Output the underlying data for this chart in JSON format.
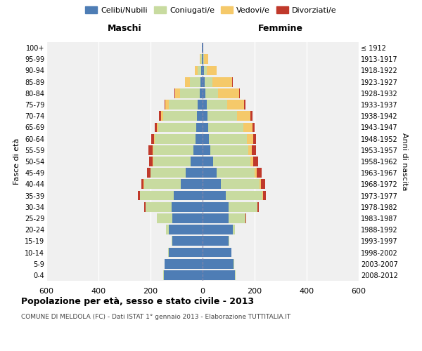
{
  "age_groups": [
    "0-4",
    "5-9",
    "10-14",
    "15-19",
    "20-24",
    "25-29",
    "30-34",
    "35-39",
    "40-44",
    "45-49",
    "50-54",
    "55-59",
    "60-64",
    "65-69",
    "70-74",
    "75-79",
    "80-84",
    "85-89",
    "90-94",
    "95-99",
    "100+"
  ],
  "birth_years": [
    "2008-2012",
    "2003-2007",
    "1998-2002",
    "1993-1997",
    "1988-1992",
    "1983-1987",
    "1978-1982",
    "1973-1977",
    "1968-1972",
    "1963-1967",
    "1958-1962",
    "1953-1957",
    "1948-1952",
    "1943-1947",
    "1938-1942",
    "1933-1937",
    "1928-1932",
    "1923-1927",
    "1918-1922",
    "1913-1917",
    "≤ 1912"
  ],
  "males": {
    "celibi": [
      150,
      145,
      130,
      115,
      130,
      115,
      120,
      110,
      85,
      65,
      45,
      35,
      28,
      25,
      22,
      20,
      12,
      8,
      5,
      3,
      2
    ],
    "coniugati": [
      2,
      2,
      2,
      3,
      10,
      60,
      100,
      130,
      140,
      135,
      145,
      155,
      155,
      145,
      130,
      110,
      75,
      40,
      15,
      5,
      0
    ],
    "vedovi": [
      0,
      0,
      0,
      0,
      0,
      0,
      0,
      0,
      1,
      1,
      1,
      2,
      3,
      5,
      8,
      12,
      18,
      20,
      10,
      2,
      0
    ],
    "divorziati": [
      0,
      0,
      0,
      0,
      0,
      2,
      5,
      8,
      10,
      12,
      15,
      15,
      12,
      10,
      8,
      5,
      2,
      0,
      0,
      0,
      0
    ]
  },
  "females": {
    "nubili": [
      125,
      120,
      110,
      100,
      115,
      100,
      100,
      90,
      70,
      55,
      40,
      30,
      25,
      22,
      18,
      15,
      10,
      8,
      5,
      3,
      2
    ],
    "coniugate": [
      2,
      2,
      2,
      3,
      10,
      65,
      110,
      140,
      150,
      145,
      145,
      145,
      145,
      135,
      115,
      80,
      50,
      30,
      10,
      3,
      0
    ],
    "vedove": [
      0,
      0,
      0,
      0,
      0,
      1,
      2,
      3,
      5,
      8,
      10,
      15,
      25,
      35,
      50,
      65,
      80,
      75,
      40,
      15,
      2
    ],
    "divorziate": [
      0,
      0,
      0,
      0,
      0,
      2,
      5,
      10,
      15,
      18,
      18,
      15,
      10,
      8,
      8,
      5,
      3,
      2,
      0,
      0,
      0
    ]
  },
  "colors": {
    "celibi": "#4e7db5",
    "coniugati": "#c8dba0",
    "vedovi": "#f5c96a",
    "divorziati": "#c0392b"
  },
  "xlim": 600,
  "title": "Popolazione per età, sesso e stato civile - 2013",
  "subtitle": "COMUNE DI MELDOLA (FC) - Dati ISTAT 1° gennaio 2013 - Elaborazione TUTTITALIA.IT",
  "xlabel_left": "Maschi",
  "xlabel_right": "Femmine",
  "ylabel_left": "Fasce di età",
  "ylabel_right": "Anni di nascita",
  "background": "#f0f0f0"
}
